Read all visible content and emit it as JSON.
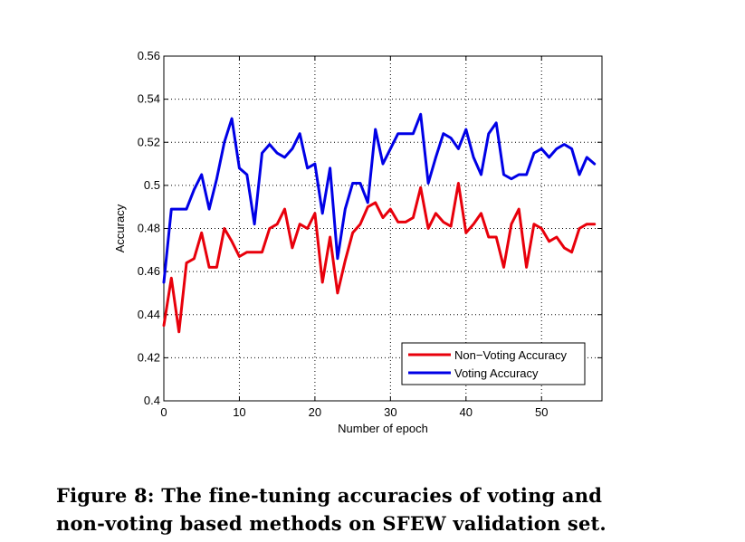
{
  "chart_data": {
    "type": "line",
    "xlabel": "Number of epoch",
    "ylabel": "Accuracy",
    "xlim": [
      0,
      58
    ],
    "ylim": [
      0.4,
      0.56
    ],
    "xticks": [
      0,
      10,
      20,
      30,
      40,
      50
    ],
    "xtick_labels": [
      "0",
      "10",
      "20",
      "30",
      "40",
      "50"
    ],
    "yticks": [
      0.4,
      0.42,
      0.44,
      0.46,
      0.48,
      0.5,
      0.52,
      0.54,
      0.56
    ],
    "ytick_labels": [
      "0.4",
      "0.42",
      "0.44",
      "0.46",
      "0.48",
      "0.5",
      "0.52",
      "0.54",
      "0.56"
    ],
    "grid": true,
    "legend_position": "bottom-right",
    "x": [
      0,
      1,
      2,
      3,
      4,
      5,
      6,
      7,
      8,
      9,
      10,
      11,
      12,
      13,
      14,
      15,
      16,
      17,
      18,
      19,
      20,
      21,
      22,
      23,
      24,
      25,
      26,
      27,
      28,
      29,
      30,
      31,
      32,
      33,
      34,
      35,
      36,
      37,
      38,
      39,
      40,
      41,
      42,
      43,
      44,
      45,
      46,
      47,
      48,
      49,
      50,
      51,
      52,
      53,
      54,
      55,
      56,
      57
    ],
    "series": [
      {
        "name": "Non−Voting Accuracy",
        "color": "#e8000b",
        "values": [
          0.435,
          0.457,
          0.432,
          0.464,
          0.466,
          0.478,
          0.462,
          0.462,
          0.48,
          0.474,
          0.467,
          0.469,
          0.469,
          0.469,
          0.48,
          0.482,
          0.489,
          0.471,
          0.482,
          0.48,
          0.487,
          0.455,
          0.476,
          0.45,
          0.465,
          0.478,
          0.482,
          0.49,
          0.492,
          0.485,
          0.489,
          0.483,
          0.483,
          0.485,
          0.499,
          0.48,
          0.487,
          0.483,
          0.481,
          0.501,
          0.478,
          0.482,
          0.487,
          0.476,
          0.476,
          0.462,
          0.482,
          0.489,
          0.462,
          0.482,
          0.48,
          0.474,
          0.476,
          0.471,
          0.469,
          0.48,
          0.482,
          0.482
        ]
      },
      {
        "name": "Voting Accuracy",
        "color": "#0000e6",
        "values": [
          0.455,
          0.489,
          0.489,
          0.489,
          0.498,
          0.505,
          0.489,
          0.503,
          0.52,
          0.531,
          0.508,
          0.505,
          0.482,
          0.515,
          0.519,
          0.515,
          0.513,
          0.517,
          0.524,
          0.508,
          0.51,
          0.487,
          0.508,
          0.466,
          0.489,
          0.501,
          0.501,
          0.492,
          0.526,
          0.51,
          0.517,
          0.524,
          0.524,
          0.524,
          0.533,
          0.501,
          0.513,
          0.524,
          0.522,
          0.517,
          0.526,
          0.513,
          0.505,
          0.524,
          0.529,
          0.505,
          0.503,
          0.505,
          0.505,
          0.515,
          0.517,
          0.513,
          0.517,
          0.519,
          0.517,
          0.505,
          0.513,
          0.51
        ]
      }
    ]
  },
  "caption": {
    "line1": "Figure 8: The fine-tuning accuracies of voting and",
    "line2": "non-voting based methods on SFEW validation set."
  }
}
